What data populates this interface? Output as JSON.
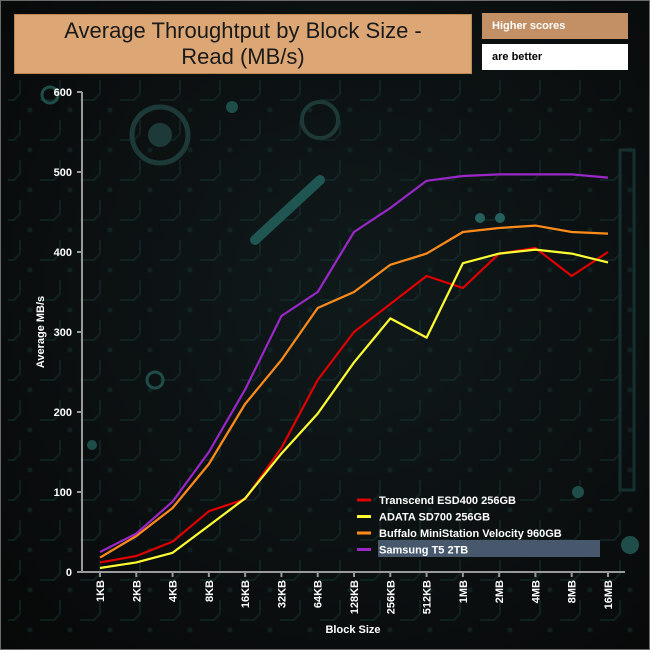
{
  "header": {
    "title": "Average Throughtput by Block Size - Read (MB/s)",
    "note_line1": "Higher scores",
    "note_line2": "are better"
  },
  "chart_data": {
    "type": "line",
    "title": "Average Throughtput by Block Size - Read (MB/s)",
    "xlabel": "Block Size",
    "ylabel": "Average MB/s",
    "ylim": [
      0,
      600
    ],
    "yticks": [
      0,
      100,
      200,
      300,
      400,
      500,
      600
    ],
    "categories": [
      "1KB",
      "2KB",
      "4KB",
      "8KB",
      "16KB",
      "32KB",
      "64KB",
      "128KB",
      "256KB",
      "512KB",
      "1MB",
      "2MB",
      "4MB",
      "8MB",
      "16MB"
    ],
    "legend_position": "bottom-right",
    "series": [
      {
        "name": "Transcend ESD400 256GB",
        "color": "#e00000",
        "values": [
          12,
          20,
          38,
          76,
          91,
          155,
          240,
          300,
          335,
          370,
          355,
          398,
          405,
          370,
          400
        ]
      },
      {
        "name": "ADATA SD700 256GB",
        "color": "#ffff33",
        "values": [
          5,
          12,
          24,
          58,
          92,
          148,
          198,
          262,
          317,
          293,
          386,
          398,
          403,
          398,
          387
        ]
      },
      {
        "name": "Buffalo MiniStation Velocity 960GB",
        "color": "#ff8c1a",
        "values": [
          18,
          45,
          80,
          135,
          210,
          265,
          330,
          350,
          384,
          398,
          425,
          430,
          433,
          425,
          423
        ]
      },
      {
        "name": "Samsung T5 2TB",
        "color": "#9b27c9",
        "values": [
          25,
          48,
          88,
          150,
          228,
          320,
          350,
          425,
          455,
          489,
          495,
          497,
          497,
          497,
          493
        ]
      }
    ]
  }
}
